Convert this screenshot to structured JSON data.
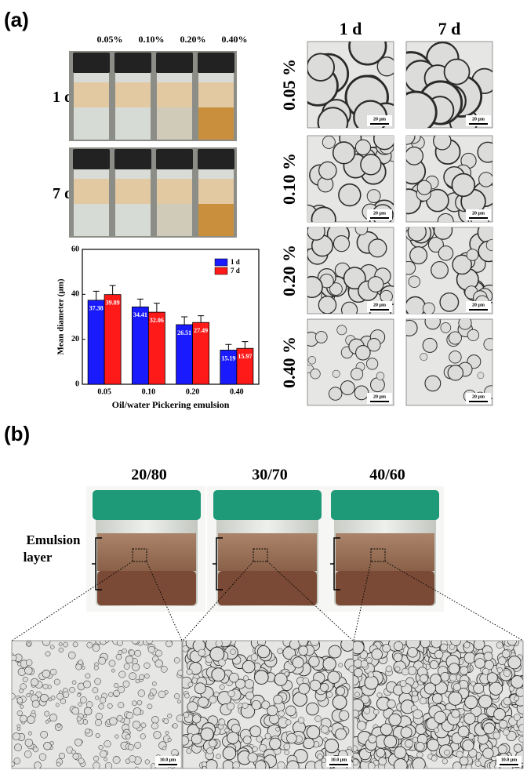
{
  "panel_labels": [
    "(a)",
    "(b)"
  ],
  "vials": {
    "concentrations": [
      "0.05%",
      "0.10%",
      "0.20%",
      "0.40%"
    ],
    "times": [
      "1 d",
      "7 d"
    ]
  },
  "chart_data": {
    "type": "bar",
    "ylabel": "Mean diameter (μm)",
    "xlabel": "Oil/water Pickering emulsion",
    "categories": [
      "0.05",
      "0.10",
      "0.20",
      "0.40"
    ],
    "series": [
      {
        "name": "1 d",
        "color": "#1a1aff",
        "values": [
          37.38,
          34.41,
          26.51,
          15.19
        ],
        "errors": [
          4,
          3.5,
          3.5,
          2.5
        ]
      },
      {
        "name": "7 d",
        "color": "#ff1a1a",
        "values": [
          39.89,
          32.06,
          27.49,
          15.97
        ],
        "errors": [
          4,
          4,
          3,
          3
        ]
      }
    ],
    "ylim": [
      0,
      60
    ],
    "yticks": [
      0,
      20,
      40,
      60
    ],
    "legend": "upper right"
  },
  "micrographs": {
    "columns": [
      "1 d",
      "7 d"
    ],
    "rows": [
      "0.05 %",
      "0.10 %",
      "0.20 %",
      "0.40 %"
    ],
    "scale": "20 μm"
  },
  "jars": {
    "ratios": [
      "20/80",
      "30/70",
      "40/60"
    ],
    "layer_label": [
      "Emulsion",
      "layer"
    ],
    "scale": "10.0 μm"
  }
}
